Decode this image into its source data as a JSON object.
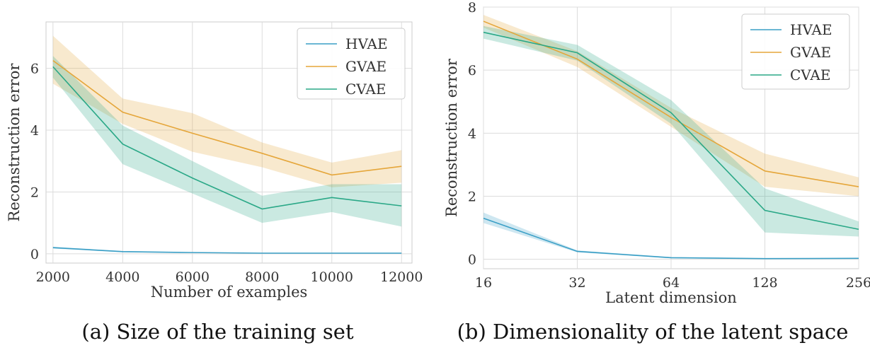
{
  "colors": {
    "HVAE": "#3a9fc6",
    "GVAE": "#e5a63a",
    "CVAE": "#2aa887",
    "grid": "#dcdcdc"
  },
  "chart_data": [
    {
      "type": "line",
      "caption": "(a) Size of the training set",
      "xlabel": "Number of examples",
      "ylabel": "Reconstruction error",
      "x": [
        2000,
        4000,
        6000,
        8000,
        10000,
        12000
      ],
      "xticks": [
        "2000",
        "4000",
        "6000",
        "8000",
        "10000",
        "12000"
      ],
      "xlim": [
        1800,
        12300
      ],
      "ylim": [
        -0.3,
        7.5
      ],
      "yticks": [
        0,
        2,
        4,
        6
      ],
      "yticklabels": [
        "0",
        "2",
        "4",
        "6"
      ],
      "grid": true,
      "legend_position": "top-right",
      "series": [
        {
          "name": "HVAE",
          "values": [
            0.2,
            0.07,
            0.04,
            0.02,
            0.02,
            0.02
          ],
          "lower": [
            0.17,
            0.05,
            0.03,
            0.01,
            0.01,
            0.01
          ],
          "upper": [
            0.23,
            0.09,
            0.05,
            0.03,
            0.03,
            0.03
          ]
        },
        {
          "name": "GVAE",
          "values": [
            6.25,
            4.58,
            3.9,
            3.25,
            2.55,
            2.83
          ],
          "lower": [
            5.5,
            4.2,
            3.3,
            2.8,
            2.15,
            2.3
          ],
          "upper": [
            7.05,
            5.02,
            4.55,
            3.6,
            2.95,
            3.35
          ]
        },
        {
          "name": "CVAE",
          "values": [
            6.05,
            3.55,
            2.45,
            1.45,
            1.82,
            1.55
          ],
          "lower": [
            5.7,
            2.9,
            1.95,
            1.0,
            1.35,
            0.88
          ],
          "upper": [
            6.4,
            4.15,
            3.0,
            1.88,
            2.25,
            2.25
          ]
        }
      ]
    },
    {
      "type": "line",
      "caption": "(b) Dimensionality of the latent space",
      "xlabel": "Latent dimension",
      "ylabel": "Reconstruction error",
      "x": [
        16,
        32,
        64,
        128,
        256
      ],
      "xticks": [
        "16",
        "32",
        "64",
        "128",
        "256"
      ],
      "xscale": "log2",
      "xlim": [
        16,
        256
      ],
      "ylim": [
        -0.3,
        8
      ],
      "yticks": [
        0,
        2,
        4,
        6,
        8
      ],
      "yticklabels": [
        "0",
        "2",
        "4",
        "6",
        "8"
      ],
      "grid": true,
      "legend_position": "top-right",
      "series": [
        {
          "name": "HVAE",
          "values": [
            1.3,
            0.25,
            0.05,
            0.02,
            0.03
          ],
          "lower": [
            1.15,
            0.22,
            0.03,
            0.01,
            0.02
          ],
          "upper": [
            1.48,
            0.28,
            0.07,
            0.03,
            0.04
          ]
        },
        {
          "name": "GVAE",
          "values": [
            7.55,
            6.35,
            4.5,
            2.8,
            2.3
          ],
          "lower": [
            7.35,
            6.1,
            4.2,
            2.3,
            2.0
          ],
          "upper": [
            7.75,
            6.6,
            4.8,
            3.35,
            2.6
          ]
        },
        {
          "name": "CVAE",
          "values": [
            7.2,
            6.55,
            4.65,
            1.55,
            0.95
          ],
          "lower": [
            7.0,
            6.3,
            4.3,
            0.85,
            0.72
          ],
          "upper": [
            7.4,
            6.8,
            5.05,
            2.25,
            1.2
          ]
        }
      ]
    }
  ]
}
